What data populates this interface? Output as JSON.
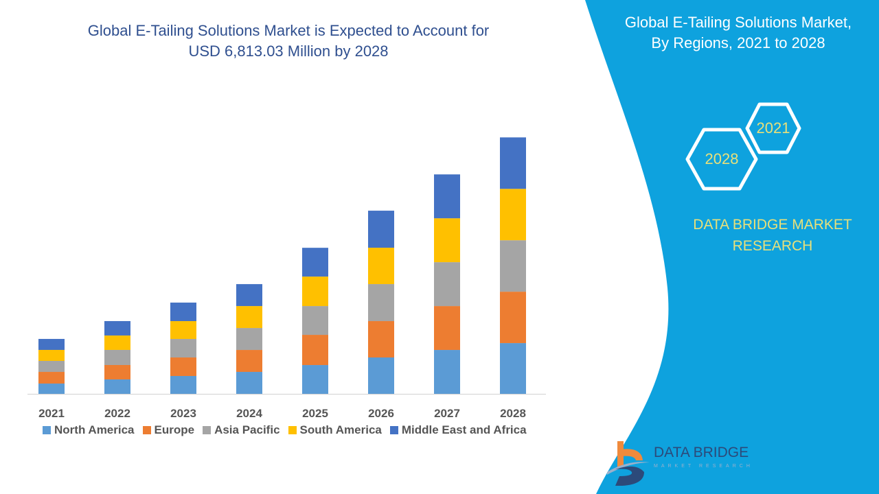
{
  "header": {
    "title_line1": "Global E-Tailing Solutions Market is Expected to Account for",
    "title_line2": "USD 6,813.03 Million by 2028"
  },
  "side_panel": {
    "title_line1": "Global E-Tailing Solutions Market,",
    "title_line2": "By Regions, 2021 to 2028",
    "hex_years": [
      "2021",
      "2028"
    ],
    "brand_line1": "DATA BRIDGE MARKET",
    "brand_line2": "RESEARCH",
    "panel_color": "#0ea2de",
    "accent_text_color": "#e8e07a"
  },
  "logo": {
    "name": "DATA BRIDGE",
    "sub": "MARKET RESEARCH"
  },
  "chart_data": {
    "type": "bar",
    "stacked": true,
    "title": "Global E-Tailing Solutions Market is Expected to Account for USD 6,813.03 Million by 2028",
    "xlabel": "",
    "ylabel": "",
    "ylim": [
      0,
      7000
    ],
    "grid": false,
    "legend_position": "bottom",
    "categories": [
      "2021",
      "2022",
      "2023",
      "2024",
      "2025",
      "2026",
      "2027",
      "2028"
    ],
    "series": [
      {
        "name": "North America",
        "color": "#5b9bd5",
        "values": [
          273,
          383,
          474,
          583,
          765,
          966,
          1166,
          1348
        ]
      },
      {
        "name": "Europe",
        "color": "#ed7d31",
        "values": [
          310,
          383,
          492,
          583,
          802,
          966,
          1166,
          1366
        ]
      },
      {
        "name": "Asia Pacific",
        "color": "#a5a5a5",
        "values": [
          292,
          401,
          492,
          583,
          765,
          984,
          1166,
          1366
        ]
      },
      {
        "name": "South America",
        "color": "#ffc000",
        "values": [
          292,
          383,
          474,
          583,
          783,
          966,
          1166,
          1366
        ]
      },
      {
        "name": "Middle East and Africa",
        "color": "#4472c4",
        "values": [
          292,
          383,
          492,
          583,
          765,
          984,
          1166,
          1367
        ]
      }
    ]
  }
}
